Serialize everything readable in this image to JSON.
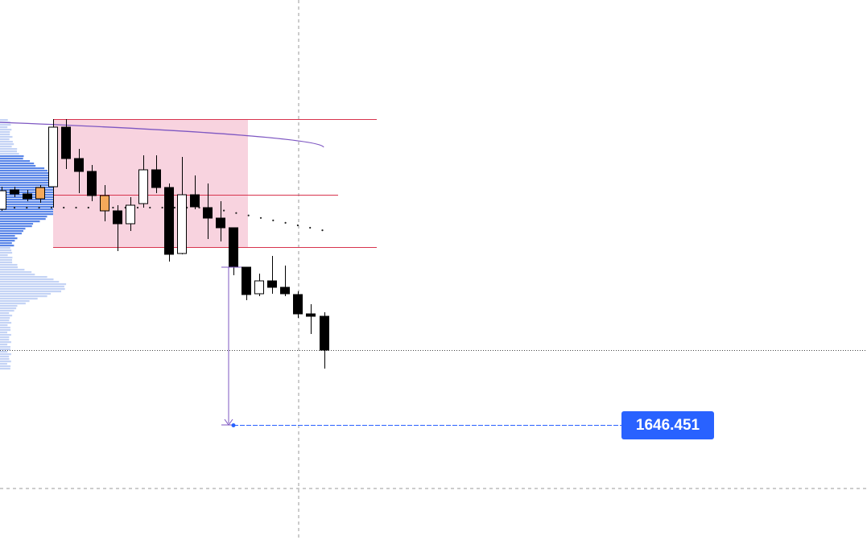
{
  "price_label": "1646.451"
}
